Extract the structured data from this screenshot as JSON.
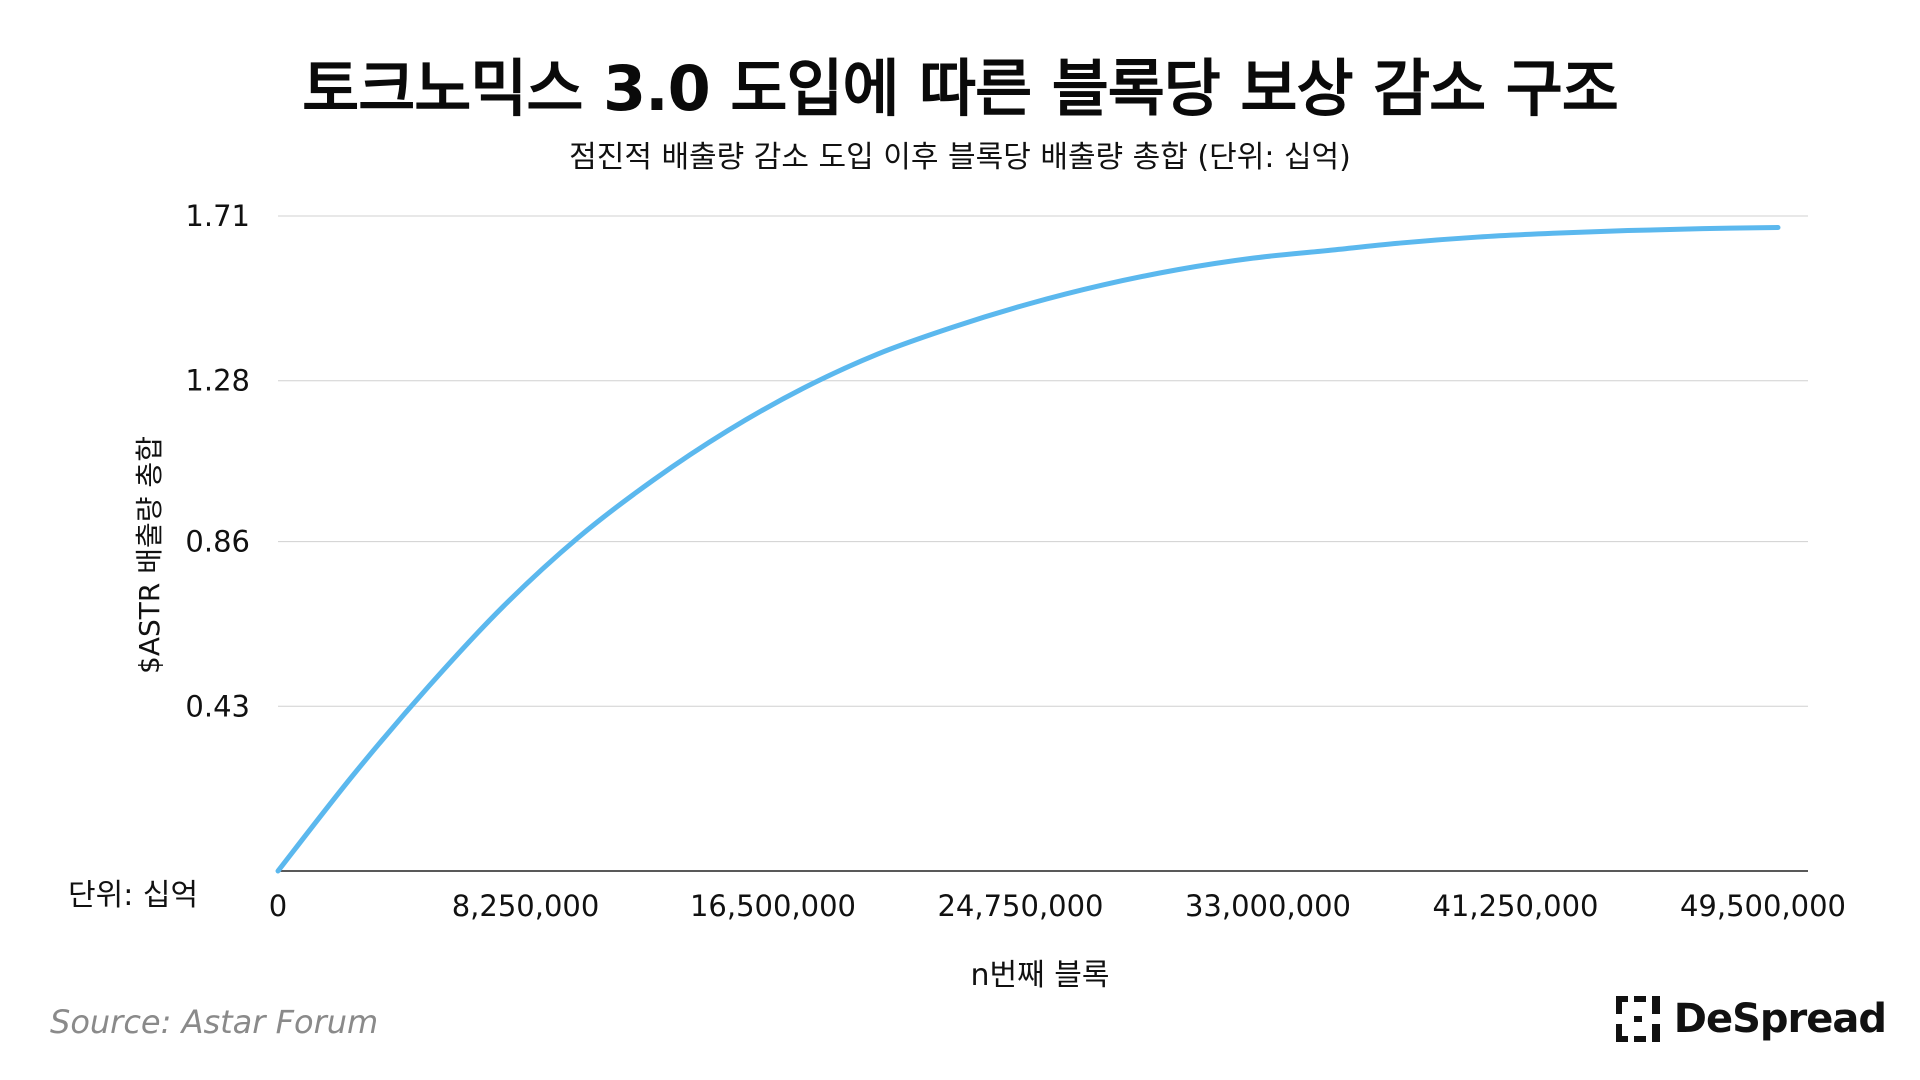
{
  "title": "토크노믹스 3.0 도입에 따른 블록당 보상 감소 구조",
  "subtitle": "점진적 배출량 감소 도입 이후 블록당 배출량 총합 (단위: 십억)",
  "unit_note": "단위: 십억",
  "source": "Source: Astar Forum",
  "brand": "DeSpread",
  "chart_data": {
    "type": "line",
    "title": "토크노믹스 3.0 도입에 따른 블록당 보상 감소 구조",
    "subtitle": "점진적 배출량 감소 도입 이후 블록당 배출량 총합 (단위: 십억)",
    "xlabel": "n번째 블록",
    "ylabel": "$ASTR 배출량 총합",
    "xlim": [
      0,
      51000000
    ],
    "ylim": [
      0,
      1.71
    ],
    "xticks": [
      0,
      8250000,
      16500000,
      24750000,
      33000000,
      41250000,
      49500000
    ],
    "xtick_labels": [
      "0",
      "8,250,000",
      "16,500,000",
      "24,750,000",
      "33,000,000",
      "41,250,000",
      "49,500,000"
    ],
    "yticks": [
      0.43,
      0.86,
      1.28,
      1.71
    ],
    "ytick_labels": [
      "0.43",
      "0.86",
      "1.28",
      "1.71"
    ],
    "grid": "horizontal",
    "line_color": "#5bb8ee",
    "series": [
      {
        "x": [
          0,
          2500000,
          5000000,
          7500000,
          10000000,
          12500000,
          15000000,
          17500000,
          20000000,
          22500000,
          25000000,
          27500000,
          30000000,
          32500000,
          35000000,
          37500000,
          40000000,
          42500000,
          45000000,
          47500000,
          50000000
        ],
        "values": [
          0,
          0.25,
          0.48,
          0.69,
          0.87,
          1.02,
          1.15,
          1.26,
          1.35,
          1.42,
          1.48,
          1.53,
          1.57,
          1.6,
          1.62,
          1.64,
          1.655,
          1.665,
          1.672,
          1.677,
          1.68
        ]
      }
    ]
  }
}
